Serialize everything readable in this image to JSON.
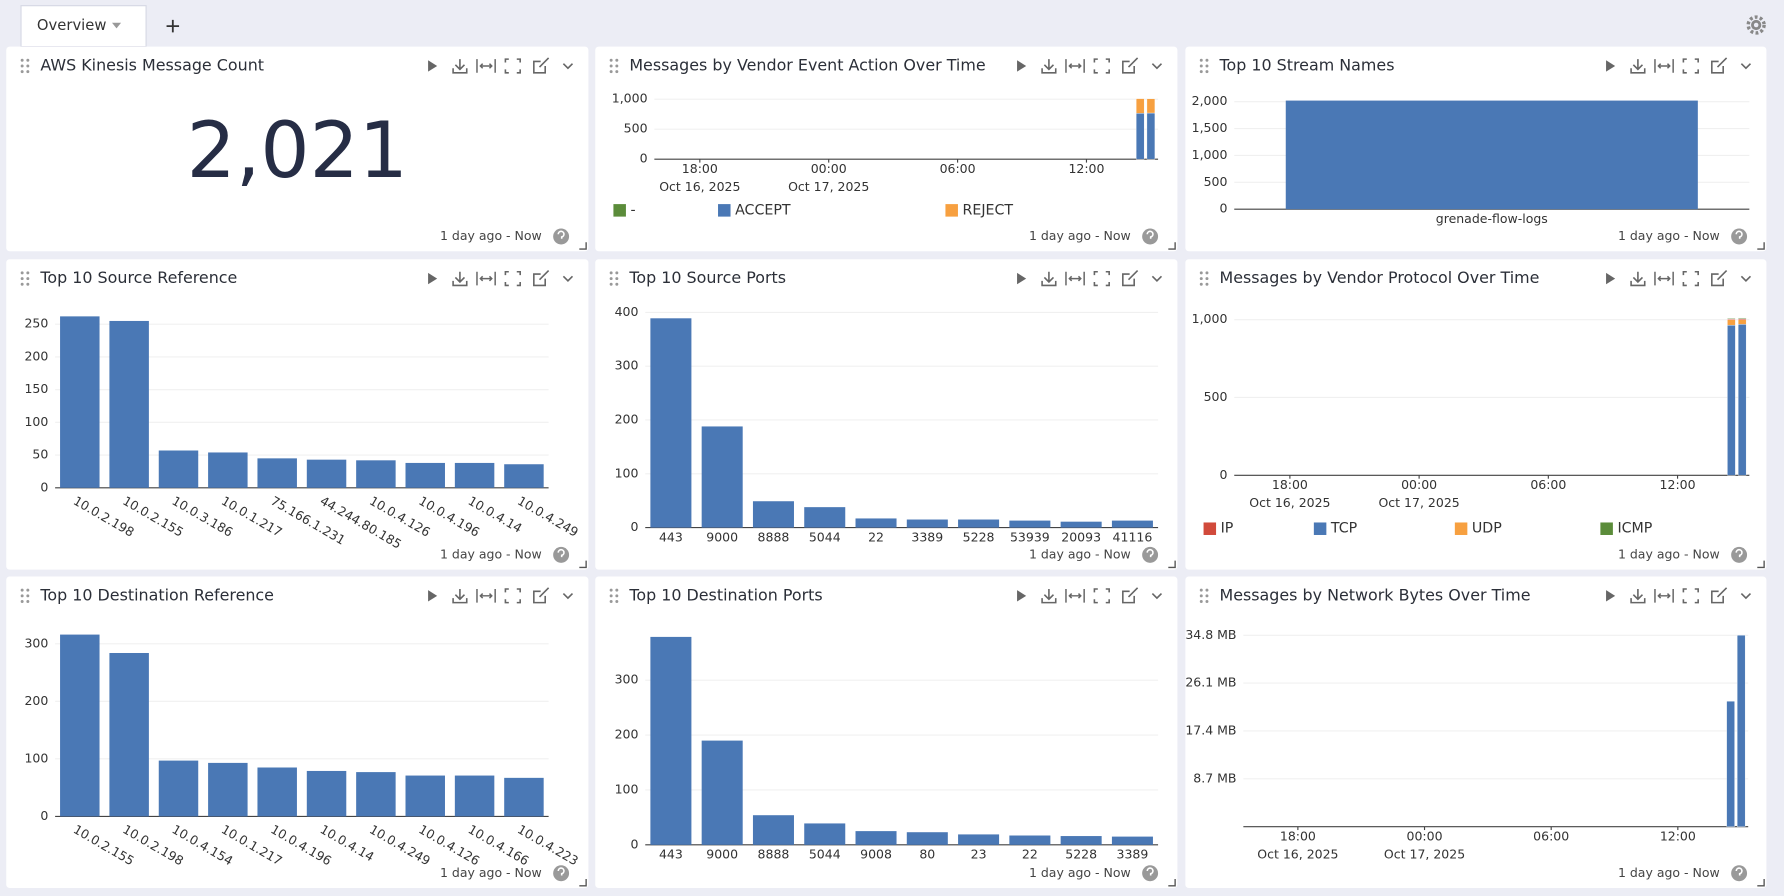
{
  "tabs": [
    "Overview"
  ],
  "chart_data": [
    {
      "type": "number",
      "title": "AWS Kinesis Message Count",
      "time_range": "1 day ago - Now",
      "value": 2021,
      "value_label": "2,021"
    },
    {
      "type": "time_bar",
      "title": "Messages by Vendor Event Action Over Time",
      "time_range": "1 day ago - Now",
      "x": [
        "2025-10-17T14:30",
        "2025-10-17T15:00"
      ],
      "series": [
        {
          "name": "ACCEPT",
          "color": "#4a78b5",
          "values": [
            765,
            770
          ]
        },
        {
          "name": "REJECT",
          "color": "#f7a040",
          "values": [
            245,
            240
          ]
        },
        {
          "name": "-",
          "color": "#5b8c3a",
          "values": [
            0,
            1
          ]
        }
      ],
      "legend_order": [
        2,
        0,
        1
      ],
      "xlim": [
        "2025-10-16T15:53",
        "2025-10-17T15:20"
      ],
      "xticks": [
        {
          "value": "2025-10-16T18:00",
          "label": "18:00",
          "date": "Oct 16, 2025"
        },
        {
          "value": "2025-10-17T00:00",
          "label": "00:00",
          "date": "Oct 17, 2025"
        },
        {
          "value": "2025-10-17T06:00",
          "label": "06:00"
        },
        {
          "value": "2025-10-17T12:00",
          "label": "12:00"
        }
      ],
      "ylim": [
        0,
        1100
      ],
      "yticks": [
        0,
        500,
        {
          "value": 1000,
          "label": "1,000"
        }
      ],
      "grid": true
    },
    {
      "type": "bar",
      "title": "Top 10 Stream Names",
      "time_range": "1 day ago - Now",
      "color": "#4a78b5",
      "categories": [
        "grenade-flow-logs"
      ],
      "values": [
        2021
      ],
      "ylim": [
        0,
        2200
      ],
      "yticks": [
        0,
        500,
        {
          "value": 1000,
          "label": "1,000"
        },
        {
          "value": 1500,
          "label": "1,500"
        },
        {
          "value": 2000,
          "label": "2,000"
        }
      ],
      "grid": true
    },
    {
      "type": "bar",
      "title": "Top 10 Source Reference",
      "time_range": "1 day ago - Now",
      "color": "#4a78b5",
      "categories": [
        "10.0.2.198",
        "10.0.2.155",
        "10.0.3.186",
        "10.0.1.217",
        "75.166.1.231",
        "44.244.80.185",
        "10.0.4.126",
        "10.0.4.196",
        "10.0.4.14",
        "10.0.4.249"
      ],
      "values": [
        262,
        255,
        57,
        54,
        45,
        43,
        42,
        38,
        38,
        36
      ],
      "ylim": [
        0,
        285
      ],
      "yticks": [
        0,
        50,
        100,
        150,
        200,
        250
      ],
      "grid": true
    },
    {
      "type": "bar",
      "title": "Top 10 Source Ports",
      "time_range": "1 day ago - Now",
      "color": "#4a78b5",
      "categories": [
        "443",
        "9000",
        "8888",
        "5044",
        "22",
        "3389",
        "5228",
        "53939",
        "20093",
        "41116"
      ],
      "values": [
        389,
        188,
        49,
        38,
        17,
        15,
        15,
        13,
        11,
        13
      ],
      "ylim": [
        0,
        410
      ],
      "yticks": [
        0,
        100,
        200,
        300,
        400
      ],
      "grid": true
    },
    {
      "type": "time_bar",
      "title": "Messages by Vendor Protocol Over Time",
      "time_range": "1 day ago - Now",
      "x": [
        "2025-10-17T14:30",
        "2025-10-17T15:00"
      ],
      "series": [
        {
          "name": "TCP",
          "color": "#4a78b5",
          "values": [
            965,
            970
          ]
        },
        {
          "name": "UDP",
          "color": "#f7a040",
          "values": [
            35,
            30
          ]
        },
        {
          "name": "IP",
          "color": "#d14a3b",
          "values": [
            5,
            6
          ]
        },
        {
          "name": "ICMP",
          "color": "#5b8c3a",
          "values": [
            5,
            5
          ]
        }
      ],
      "legend_order": [
        2,
        0,
        1,
        3
      ],
      "xlim": [
        "2025-10-16T15:25",
        "2025-10-17T15:20"
      ],
      "xticks": [
        {
          "value": "2025-10-16T18:00",
          "label": "18:00",
          "date": "Oct 16, 2025"
        },
        {
          "value": "2025-10-17T00:00",
          "label": "00:00",
          "date": "Oct 17, 2025"
        },
        {
          "value": "2025-10-17T06:00",
          "label": "06:00"
        },
        {
          "value": "2025-10-17T12:00",
          "label": "12:00"
        }
      ],
      "ylim": [
        0,
        1045
      ],
      "yticks": [
        0,
        500,
        {
          "value": 1000,
          "label": "1,000"
        }
      ],
      "grid": true
    },
    {
      "type": "bar",
      "title": "Top 10 Destination Reference",
      "time_range": "1 day ago - Now",
      "color": "#4a78b5",
      "categories": [
        "10.0.2.155",
        "10.0.2.198",
        "10.0.4.154",
        "10.0.1.217",
        "10.0.4.196",
        "10.0.4.14",
        "10.0.4.249",
        "10.0.4.126",
        "10.0.4.166",
        "10.0.4.223"
      ],
      "values": [
        316,
        284,
        97,
        93,
        85,
        79,
        77,
        71,
        71,
        67
      ],
      "ylim": [
        0,
        332
      ],
      "yticks": [
        0,
        100,
        200,
        300
      ],
      "grid": true
    },
    {
      "type": "bar",
      "title": "Top 10 Destination Ports",
      "time_range": "1 day ago - Now",
      "color": "#4a78b5",
      "categories": [
        "443",
        "9000",
        "8888",
        "5044",
        "9008",
        "80",
        "23",
        "22",
        "5228",
        "3389"
      ],
      "values": [
        379,
        190,
        54,
        39,
        25,
        23,
        19,
        17,
        16,
        15
      ],
      "ylim": [
        0,
        400
      ],
      "yticks": [
        0,
        100,
        200,
        300
      ],
      "grid": true
    },
    {
      "type": "time_bar",
      "title": "Messages by Network Bytes Over Time",
      "time_range": "1 day ago - Now",
      "x": [
        "2025-10-17T14:30",
        "2025-10-17T15:00"
      ],
      "series": [
        {
          "color": "#4a78b5",
          "values": [
            22.8,
            34.8
          ]
        }
      ],
      "xlim": [
        "2025-10-16T15:25",
        "2025-10-17T15:20"
      ],
      "xticks": [
        {
          "value": "2025-10-16T18:00",
          "label": "18:00",
          "date": "Oct 16, 2025"
        },
        {
          "value": "2025-10-17T00:00",
          "label": "00:00",
          "date": "Oct 17, 2025"
        },
        {
          "value": "2025-10-17T06:00",
          "label": "06:00"
        },
        {
          "value": "2025-10-17T12:00",
          "label": "12:00"
        }
      ],
      "ylim": [
        0,
        36.6
      ],
      "yticks": [
        {
          "value": 8.7,
          "label": "8.7 MB"
        },
        {
          "value": 17.4,
          "label": "17.4 MB"
        },
        {
          "value": 26.1,
          "label": "26.1 MB"
        },
        {
          "value": 34.8,
          "label": "34.8 MB"
        }
      ],
      "grid": true
    }
  ]
}
